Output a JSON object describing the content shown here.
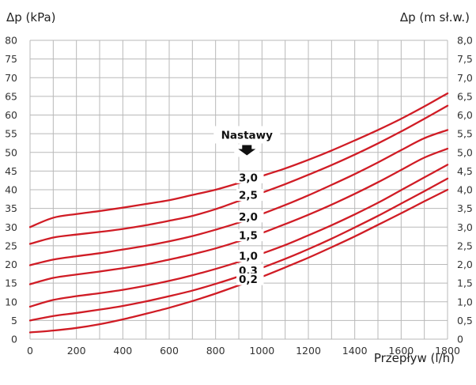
{
  "chart_data": {
    "type": "line",
    "left_axis_title": "Δp (kPa)",
    "right_axis_title": "Δp (m sł.w.)",
    "xlabel": "Przepływ (l/h)",
    "xlim": [
      0,
      1800
    ],
    "ylim": [
      0,
      80
    ],
    "x_ticks": [
      "0",
      "200",
      "400",
      "600",
      "800",
      "1000",
      "1200",
      "1400",
      "1600",
      "1800"
    ],
    "y_ticks_left": [
      "0",
      "5",
      "10",
      "15",
      "20",
      "25",
      "30",
      "35",
      "40",
      "45",
      "50",
      "55",
      "60",
      "65",
      "70",
      "75",
      "80"
    ],
    "y_ticks_right": [
      "0",
      "0,5",
      "1,0",
      "1,5",
      "2,0",
      "2,5",
      "3,0",
      "3,5",
      "4,0",
      "4,5",
      "5,0",
      "5,5",
      "6,0",
      "6,5",
      "7,0",
      "7,5",
      "8,0"
    ],
    "grid": true,
    "line_color": "#d01c25",
    "annotation": {
      "label": "Nastawy",
      "x": 935,
      "y": 54.5
    },
    "label_column_x": 900,
    "series": [
      {
        "name": "3,0",
        "x": [
          0,
          100,
          200,
          300,
          400,
          500,
          600,
          700,
          800,
          900,
          1000,
          1100,
          1200,
          1300,
          1400,
          1500,
          1600,
          1700,
          1800
        ],
        "y": [
          30,
          32.5,
          33.5,
          34.3,
          35.2,
          36.2,
          37.2,
          38.6,
          40.0,
          41.8,
          43.7,
          45.7,
          48.0,
          50.5,
          53.2,
          56.0,
          59.0,
          62.3,
          65.8
        ]
      },
      {
        "name": "2,5",
        "x": [
          0,
          100,
          200,
          300,
          400,
          500,
          600,
          700,
          800,
          900,
          1000,
          1100,
          1200,
          1300,
          1400,
          1500,
          1600,
          1700,
          1800
        ],
        "y": [
          25.5,
          27.2,
          28.0,
          28.7,
          29.5,
          30.5,
          31.7,
          33.0,
          34.8,
          37.0,
          39.2,
          41.5,
          44.0,
          46.6,
          49.4,
          52.4,
          55.6,
          59.0,
          62.5
        ]
      },
      {
        "name": "2,0",
        "x": [
          0,
          100,
          200,
          300,
          400,
          500,
          600,
          700,
          800,
          900,
          1000,
          1100,
          1200,
          1300,
          1400,
          1500,
          1600,
          1700,
          1800
        ],
        "y": [
          19.8,
          21.3,
          22.2,
          23.0,
          24.0,
          25.0,
          26.2,
          27.6,
          29.3,
          31.2,
          33.5,
          35.9,
          38.5,
          41.3,
          44.2,
          47.3,
          50.6,
          53.8,
          56.0
        ]
      },
      {
        "name": "1,5",
        "x": [
          0,
          100,
          200,
          300,
          400,
          500,
          600,
          700,
          800,
          900,
          1000,
          1100,
          1200,
          1300,
          1400,
          1500,
          1600,
          1700,
          1800
        ],
        "y": [
          14.7,
          16.4,
          17.3,
          18.1,
          19.0,
          20.0,
          21.3,
          22.7,
          24.3,
          26.2,
          28.4,
          30.8,
          33.3,
          36.0,
          38.9,
          42.0,
          45.3,
          48.6,
          51.0
        ]
      },
      {
        "name": "1,0",
        "x": [
          0,
          100,
          200,
          300,
          400,
          500,
          600,
          700,
          800,
          900,
          1000,
          1100,
          1200,
          1300,
          1400,
          1500,
          1600,
          1700,
          1800
        ],
        "y": [
          8.7,
          10.5,
          11.5,
          12.3,
          13.2,
          14.3,
          15.6,
          17.1,
          18.8,
          20.7,
          22.9,
          25.2,
          27.8,
          30.5,
          33.4,
          36.5,
          39.9,
          43.3,
          46.7
        ]
      },
      {
        "name": "0,3",
        "x": [
          0,
          100,
          200,
          300,
          400,
          500,
          600,
          700,
          800,
          900,
          1000,
          1100,
          1200,
          1300,
          1400,
          1500,
          1600,
          1700,
          1800
        ],
        "y": [
          5.0,
          6.2,
          7.0,
          7.9,
          8.9,
          10.1,
          11.5,
          13.0,
          14.8,
          16.8,
          19.1,
          21.5,
          24.1,
          26.9,
          29.9,
          33.0,
          36.3,
          39.6,
          43.0
        ]
      },
      {
        "name": "0,2",
        "x": [
          0,
          100,
          200,
          300,
          400,
          500,
          600,
          700,
          800,
          900,
          1000,
          1100,
          1200,
          1300,
          1400,
          1500,
          1600,
          1700,
          1800
        ],
        "y": [
          1.8,
          2.3,
          3.0,
          4.0,
          5.3,
          6.8,
          8.4,
          10.2,
          12.2,
          14.4,
          16.7,
          19.2,
          21.8,
          24.6,
          27.5,
          30.6,
          33.7,
          36.9,
          40.0
        ]
      }
    ]
  }
}
